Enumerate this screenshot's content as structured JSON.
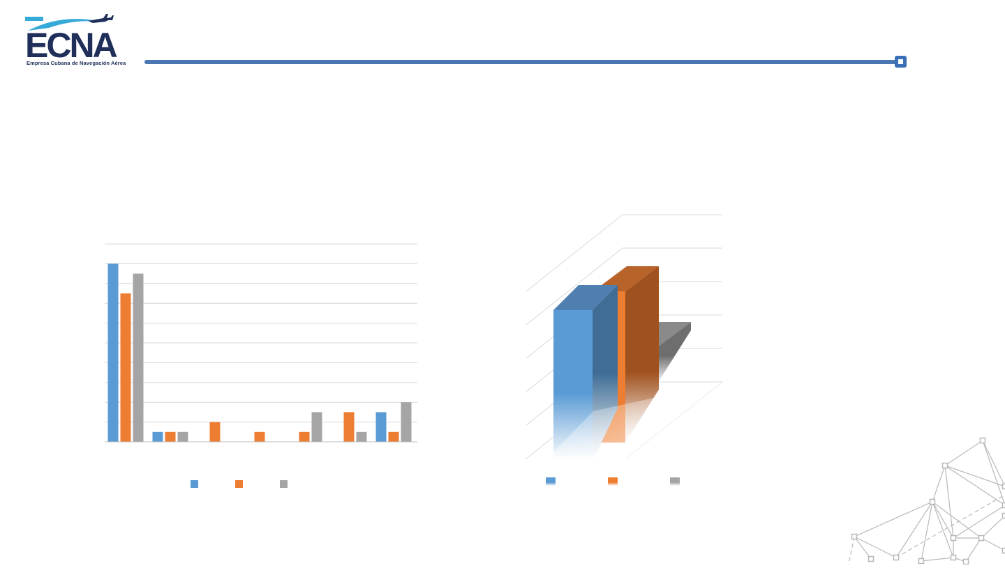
{
  "branding": {
    "logo_text": "ECNA",
    "logo_subtitle": "Empresa Cubana de Navegación Aérea",
    "accent_color": "#3b6fb6",
    "logo_dark": "#1f2f5a",
    "logo_teal": "#35a9d8"
  },
  "colors": {
    "series": [
      "#5b9bd5",
      "#ed7d31",
      "#a5a5a5"
    ],
    "series_dark": [
      "#3f6d96",
      "#a04f1c",
      "#6e6e6e"
    ],
    "gridline": "#d9d9d9",
    "network": "#b8b8b8"
  },
  "chart_data": [
    {
      "type": "bar",
      "title": "",
      "xlabel": "",
      "ylabel": "",
      "categories": [
        "",
        "",
        "",
        "",
        "",
        "",
        ""
      ],
      "series": [
        {
          "values": [
            18,
            1,
            0,
            0,
            0,
            0,
            3
          ]
        },
        {
          "values": [
            15,
            1,
            2,
            1,
            1,
            3,
            1
          ]
        },
        {
          "values": [
            17,
            1,
            0,
            0,
            3,
            1,
            4
          ]
        }
      ],
      "ylim": [
        0,
        20
      ],
      "grid": true,
      "legend": "bottom"
    },
    {
      "type": "bar",
      "title": "",
      "variant": "3d-column",
      "categories": [
        ""
      ],
      "series": [
        {
          "values": [
            4.25
          ]
        },
        {
          "values": [
            4.5
          ]
        },
        {
          "values": [
            2.5
          ]
        }
      ],
      "ylim": [
        0,
        5
      ],
      "grid": true,
      "legend": "bottom"
    }
  ]
}
